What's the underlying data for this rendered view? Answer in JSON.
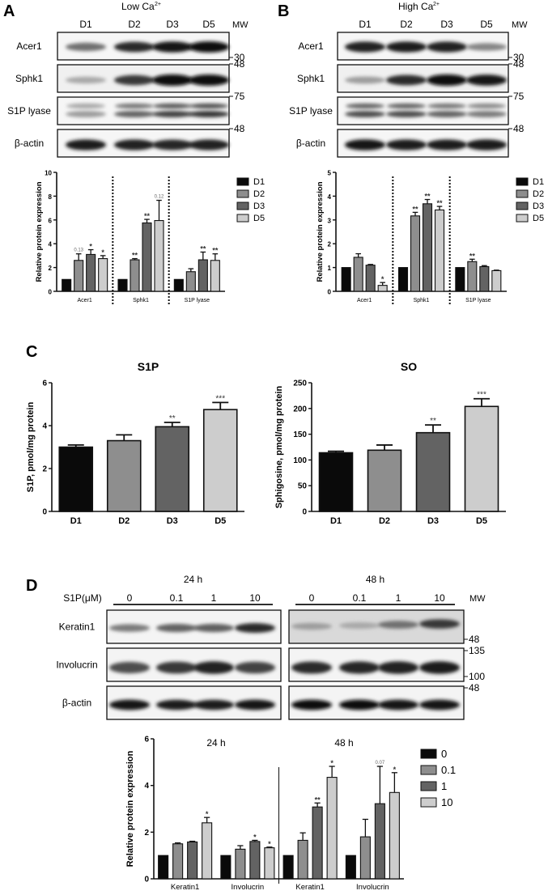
{
  "colors": {
    "d1": "#0a0a0a",
    "d2": "#8e8e8e",
    "d3": "#636363",
    "d5": "#cdcdcd",
    "band": "#1a1a1a",
    "axis": "#111111"
  },
  "panelA": {
    "letter": "A",
    "condition": "Low Ca",
    "condition_sup": "2+",
    "lanes": [
      "D1",
      "D2",
      "D3",
      "D5"
    ],
    "mw_label": "MW",
    "blots": [
      {
        "name": "Acer1",
        "mw_marks": [
          {
            "label": "30",
            "pos": "bottom"
          }
        ],
        "intensity": [
          0.55,
          0.85,
          0.95,
          0.97
        ],
        "bands": 1
      },
      {
        "name": "Sphk1",
        "mw_marks": [
          {
            "label": "48",
            "pos": "top"
          }
        ],
        "intensity": [
          0.3,
          0.8,
          1.0,
          0.98
        ],
        "bands": 1
      },
      {
        "name": "S1P lyase",
        "mw_marks": [
          {
            "label": "75",
            "pos": "top"
          }
        ],
        "intensity": [
          0.35,
          0.6,
          0.75,
          0.8
        ],
        "bands": 2
      },
      {
        "name": "β-actin",
        "mw_marks": [
          {
            "label": "48",
            "pos": "top"
          }
        ],
        "intensity": [
          0.92,
          0.9,
          0.88,
          0.9
        ],
        "bands": 1
      }
    ]
  },
  "panelB": {
    "letter": "B",
    "condition": "High Ca",
    "condition_sup": "2+",
    "lanes": [
      "D1",
      "D2",
      "D3",
      "D5"
    ],
    "mw_label": "MW",
    "blots": [
      {
        "name": "Acer1",
        "mw_marks": [
          {
            "label": "30",
            "pos": "bottom"
          }
        ],
        "intensity": [
          0.9,
          0.92,
          0.9,
          0.45
        ],
        "bands": 1
      },
      {
        "name": "Sphk1",
        "mw_marks": [
          {
            "label": "48",
            "pos": "top"
          }
        ],
        "intensity": [
          0.35,
          0.85,
          1.0,
          0.95
        ],
        "bands": 1
      },
      {
        "name": "S1P lyase",
        "mw_marks": [
          {
            "label": "75",
            "pos": "top"
          }
        ],
        "intensity": [
          0.7,
          0.7,
          0.6,
          0.5
        ],
        "bands": 2
      },
      {
        "name": "β-actin",
        "mw_marks": [
          {
            "label": "48",
            "pos": "top"
          }
        ],
        "intensity": [
          0.95,
          0.92,
          0.92,
          0.93
        ],
        "bands": 1
      }
    ]
  },
  "panelC": {
    "letter": "C"
  },
  "panelD": {
    "letter": "D",
    "treatment_label": "S1P(μM)",
    "groups": [
      {
        "time": "24 h",
        "lanes": [
          "0",
          "0.1",
          "1",
          "10"
        ]
      },
      {
        "time": "48 h",
        "lanes": [
          "0",
          "0.1",
          "1",
          "10"
        ]
      }
    ],
    "mw_label": "MW",
    "blots": [
      {
        "name": "Keratin1",
        "intensity24": [
          0.5,
          0.6,
          0.62,
          0.85
        ],
        "intensity48": [
          0.35,
          0.3,
          0.55,
          0.8
        ],
        "mw_marks": [
          "48"
        ]
      },
      {
        "name": "Involucrin",
        "intensity24": [
          0.7,
          0.8,
          0.9,
          0.75
        ],
        "intensity48": [
          0.85,
          0.88,
          0.9,
          0.92
        ],
        "mw_marks": [
          "135",
          "100"
        ]
      },
      {
        "name": "β-actin",
        "intensity24": [
          0.95,
          0.93,
          0.93,
          0.95
        ],
        "intensity48": [
          0.97,
          0.97,
          0.96,
          0.96
        ],
        "mw_marks": [
          "48"
        ]
      }
    ]
  },
  "chart_data": [
    {
      "id": "A-quant",
      "type": "bar",
      "title": "Low Ca2+",
      "xlabel": "",
      "ylabel": "Relative protein expression",
      "ylim": [
        0,
        10
      ],
      "yticks": [
        0,
        2,
        4,
        6,
        8,
        10
      ],
      "categories": [
        "Acer1",
        "Sphk1",
        "S1P lyase"
      ],
      "legend": [
        "D1",
        "D2",
        "D3",
        "D5"
      ],
      "legend_position": "right",
      "grid": false,
      "separators": "dotted",
      "series": [
        {
          "name": "D1",
          "values": [
            1.0,
            1.0,
            1.0
          ],
          "errors": [
            0,
            0,
            0
          ],
          "annotations": [
            "",
            "",
            ""
          ]
        },
        {
          "name": "D2",
          "values": [
            2.6,
            2.65,
            1.65
          ],
          "errors": [
            0.55,
            0.1,
            0.25
          ],
          "annotations": [
            "0.13",
            "**",
            ""
          ]
        },
        {
          "name": "D3",
          "values": [
            3.1,
            5.75,
            2.65
          ],
          "errors": [
            0.4,
            0.3,
            0.65
          ],
          "annotations": [
            "*",
            "**",
            "**"
          ]
        },
        {
          "name": "D5",
          "values": [
            2.75,
            5.95,
            2.6
          ],
          "errors": [
            0.25,
            1.7,
            0.55
          ],
          "annotations": [
            "*",
            "0.12",
            "**"
          ]
        }
      ]
    },
    {
      "id": "B-quant",
      "type": "bar",
      "title": "High Ca2+",
      "xlabel": "",
      "ylabel": "Relative protein expression",
      "ylim": [
        0,
        5
      ],
      "yticks": [
        0,
        1,
        2,
        3,
        4,
        5
      ],
      "categories": [
        "Acer1",
        "Sphk1",
        "S1P lyase"
      ],
      "legend": [
        "D1",
        "D2",
        "D3",
        "D5"
      ],
      "legend_position": "right",
      "grid": false,
      "separators": "dotted",
      "series": [
        {
          "name": "D1",
          "values": [
            1.0,
            1.0,
            1.0
          ],
          "errors": [
            0,
            0,
            0
          ],
          "annotations": [
            "",
            "",
            ""
          ]
        },
        {
          "name": "D2",
          "values": [
            1.43,
            3.17,
            1.25
          ],
          "errors": [
            0.15,
            0.15,
            0.1
          ],
          "annotations": [
            "",
            "**",
            "**"
          ]
        },
        {
          "name": "D3",
          "values": [
            1.1,
            3.68,
            1.04
          ],
          "errors": [
            0.03,
            0.18,
            0.04
          ],
          "annotations": [
            "",
            "**",
            ""
          ]
        },
        {
          "name": "D5",
          "values": [
            0.25,
            3.42,
            0.87
          ],
          "errors": [
            0.12,
            0.15,
            0.02
          ],
          "annotations": [
            "*",
            "**",
            ""
          ]
        }
      ]
    },
    {
      "id": "C-S1P",
      "type": "bar",
      "title": "S1P",
      "xlabel": "",
      "ylabel": "S1P, pmol/mg protein",
      "ylim": [
        0,
        6
      ],
      "yticks": [
        0,
        2,
        4,
        6
      ],
      "categories": [
        "D1",
        "D2",
        "D3",
        "D5"
      ],
      "values": [
        3.0,
        3.3,
        3.95,
        4.75
      ],
      "errors": [
        0.1,
        0.27,
        0.2,
        0.33
      ],
      "annotations": [
        "",
        "",
        "**",
        "***"
      ],
      "grid": false
    },
    {
      "id": "C-SO",
      "type": "bar",
      "title": "SO",
      "xlabel": "",
      "ylabel": "Sphigosine, pmol/mg protein",
      "ylim": [
        0,
        250
      ],
      "yticks": [
        0,
        50,
        100,
        150,
        200,
        250
      ],
      "categories": [
        "D1",
        "D2",
        "D3",
        "D5"
      ],
      "values": [
        114,
        119,
        153,
        204
      ],
      "errors": [
        3,
        10,
        15,
        15
      ],
      "annotations": [
        "",
        "",
        "**",
        "***"
      ],
      "grid": false
    },
    {
      "id": "D-quant",
      "type": "bar",
      "title": "",
      "group_titles": [
        "24 h",
        "48 h"
      ],
      "xlabel": "",
      "ylabel": "Relative protein expression",
      "ylim": [
        0,
        6
      ],
      "yticks": [
        0,
        2,
        4,
        6
      ],
      "categories": [
        "Keratin1",
        "Involucrin",
        "Keratin1",
        "Involucrin"
      ],
      "legend": [
        "0",
        "0.1",
        "1",
        "10"
      ],
      "legend_position": "right",
      "grid": false,
      "separators": "solid-between-24h-48h",
      "series": [
        {
          "name": "0",
          "values": [
            1.0,
            1.0,
            1.0,
            1.0
          ],
          "errors": [
            0,
            0,
            0,
            0
          ],
          "annotations": [
            "",
            "",
            "",
            ""
          ]
        },
        {
          "name": "0.1",
          "values": [
            1.5,
            1.27,
            1.65,
            1.8
          ],
          "errors": [
            0.04,
            0.15,
            0.32,
            0.75
          ],
          "annotations": [
            "",
            "",
            "",
            ""
          ]
        },
        {
          "name": "1",
          "values": [
            1.58,
            1.6,
            3.08,
            3.22
          ],
          "errors": [
            0.03,
            0.05,
            0.17,
            1.6
          ],
          "annotations": [
            "",
            "*",
            "**",
            "0.07"
          ]
        },
        {
          "name": "10",
          "values": [
            2.4,
            1.33,
            4.35,
            3.7
          ],
          "errors": [
            0.23,
            0.03,
            0.47,
            0.85
          ],
          "annotations": [
            "*",
            "*",
            "*",
            "*"
          ]
        }
      ]
    }
  ]
}
